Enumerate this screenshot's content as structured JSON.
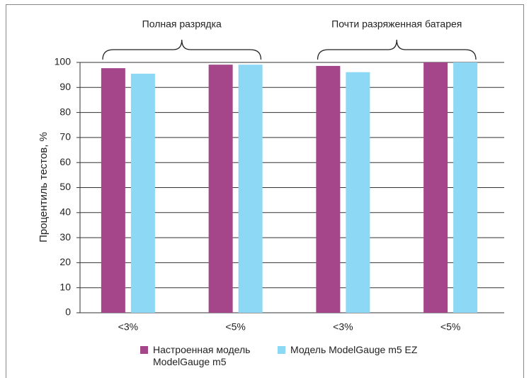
{
  "chart_data": {
    "type": "bar",
    "ylabel": "Процентиль тестов, %",
    "group_labels": [
      "Полная разрядка",
      "Почти разряженная батарея"
    ],
    "categories": [
      "<3%",
      "<5%",
      "<3%",
      "<5%"
    ],
    "series": [
      {
        "name": "Настроенная модель ModelGauge m5",
        "color": "#a5468a",
        "values": [
          97.7,
          99.1,
          98.6,
          100
        ]
      },
      {
        "name": "Модель ModelGauge m5 EZ",
        "color": "#8dd8f4",
        "values": [
          95.5,
          99.1,
          96.1,
          100
        ]
      }
    ],
    "ylim": [
      0,
      100
    ],
    "yticks": [
      0,
      10,
      20,
      30,
      40,
      50,
      60,
      70,
      80,
      90,
      100
    ],
    "grid": true
  }
}
